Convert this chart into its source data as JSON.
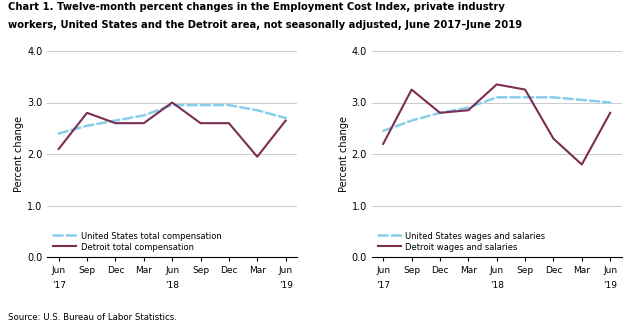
{
  "title_line1": "Chart 1. Twelve-month percent changes in the Employment Cost Index, private industry",
  "title_line2": "workers, United States and the Detroit area, not seasonally adjusted, June 2017–June 2019",
  "source": "Source: U.S. Bureau of Labor Statistics.",
  "ylabel": "Percent change",
  "ylim": [
    0.0,
    4.0
  ],
  "yticks": [
    0.0,
    1.0,
    2.0,
    3.0,
    4.0
  ],
  "x_labels_top": [
    "Jun",
    "Sep",
    "Dec",
    "Mar",
    "Jun",
    "Sep",
    "Dec",
    "Mar",
    "Jun"
  ],
  "x_labels_bot": [
    "'17",
    "",
    "",
    "",
    "'18",
    "",
    "",
    "",
    "'19"
  ],
  "left_chart": {
    "us_total_comp": [
      2.4,
      2.55,
      2.65,
      2.75,
      2.95,
      2.95,
      2.95,
      2.85,
      2.7
    ],
    "detroit_total_comp": [
      2.1,
      2.8,
      2.6,
      2.6,
      3.0,
      2.6,
      2.6,
      1.95,
      2.65
    ],
    "legend1": "United States total compensation",
    "legend2": "Detroit total compensation"
  },
  "right_chart": {
    "us_wages_salaries": [
      2.45,
      2.65,
      2.8,
      2.9,
      3.1,
      3.1,
      3.1,
      3.05,
      3.0
    ],
    "detroit_wages_salaries": [
      2.2,
      3.25,
      2.8,
      2.85,
      3.35,
      3.25,
      2.3,
      1.8,
      2.8
    ],
    "legend1": "United States wages and salaries",
    "legend2": "Detroit wages and salaries"
  },
  "us_color": "#87CEEB",
  "detroit_color": "#7B2D52",
  "us_linestyle": "dashed",
  "detroit_linestyle": "solid",
  "linewidth": 1.5,
  "bg_color": "#ffffff",
  "grid_color": "#cccccc"
}
